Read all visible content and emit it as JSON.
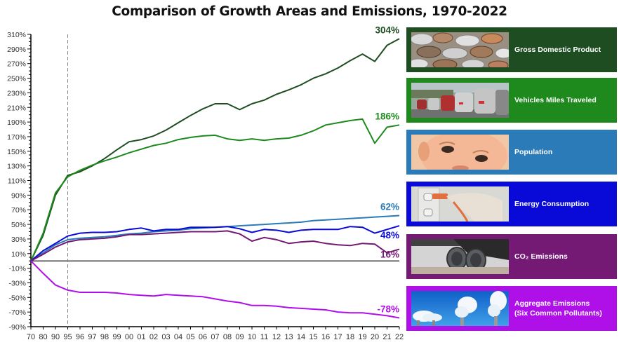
{
  "title": "Comparison of Growth Areas and Emissions, 1970-2022",
  "legend": [
    {
      "label": "Gross Domestic Product",
      "color": "#1e4d22",
      "image": "coins-photo"
    },
    {
      "label": "Vehicles Miles Traveled",
      "color": "#1e8a1e",
      "image": "traffic-photo"
    },
    {
      "label": "Population",
      "color": "#2a7bb8",
      "image": "baby-face-photo"
    },
    {
      "label": "Energy Consumption",
      "color": "#0a0ad8",
      "image": "power-plug-photo"
    },
    {
      "label": "CO₂ Emissions",
      "color": "#741a74",
      "image": "exhaust-pipe-photo"
    },
    {
      "label": "Aggregate Emissions",
      "label2": "(Six Common Pollutants)",
      "color": "#b010e8",
      "image": "smokestacks-photo"
    }
  ],
  "chart_data": {
    "type": "line",
    "title": "Comparison of Growth Areas and Emissions, 1970-2022",
    "xlabel": "",
    "ylabel": "",
    "x": [
      "70",
      "80",
      "90",
      "95",
      "96",
      "97",
      "98",
      "99",
      "00",
      "01",
      "02",
      "03",
      "04",
      "05",
      "06",
      "07",
      "08",
      "09",
      "10",
      "11",
      "12",
      "13",
      "14",
      "15",
      "16",
      "17",
      "18",
      "19",
      "20",
      "21",
      "22"
    ],
    "ylim": [
      -90,
      310
    ],
    "yticks": [
      "310%",
      "290%",
      "270%",
      "250%",
      "230%",
      "210%",
      "190%",
      "170%",
      "150%",
      "130%",
      "110%",
      "90%",
      "70%",
      "50%",
      "30%",
      "10%",
      "-10%",
      "-30%",
      "-50%",
      "-70%",
      "-90%"
    ],
    "ytick_values": [
      310,
      290,
      270,
      250,
      230,
      210,
      190,
      170,
      150,
      130,
      110,
      90,
      70,
      50,
      30,
      10,
      -10,
      -30,
      -50,
      -70,
      -90
    ],
    "reference_line": {
      "x": "95",
      "style": "dashed"
    },
    "grid": false,
    "series": [
      {
        "name": "Gross Domestic Product",
        "color": "#1e4d22",
        "end_label": "304%",
        "values": [
          0,
          35,
          90,
          117,
          122,
          130,
          140,
          152,
          163,
          166,
          171,
          179,
          189,
          199,
          208,
          215,
          215,
          207,
          215,
          220,
          228,
          234,
          241,
          250,
          256,
          264,
          274,
          283,
          273,
          295,
          304
        ]
      },
      {
        "name": "Vehicles Miles Traveled",
        "color": "#1e8a1e",
        "end_label": "186%",
        "values": [
          0,
          38,
          93,
          115,
          124,
          131,
          137,
          142,
          148,
          153,
          158,
          161,
          166,
          169,
          171,
          172,
          167,
          165,
          167,
          165,
          167,
          168,
          172,
          178,
          186,
          189,
          192,
          194,
          161,
          183,
          186
        ]
      },
      {
        "name": "Population",
        "color": "#2a7bb8",
        "end_label": "62%",
        "values": [
          0,
          11,
          22,
          29,
          31,
          32,
          33,
          35,
          37,
          38,
          40,
          41,
          42,
          44,
          45,
          46,
          47,
          48,
          49,
          50,
          51,
          52,
          53,
          55,
          56,
          57,
          58,
          59,
          60,
          61,
          62
        ]
      },
      {
        "name": "Energy Consumption",
        "color": "#0a0ad8",
        "end_label": "48%",
        "values": [
          0,
          14,
          24,
          34,
          38,
          39,
          39,
          40,
          43,
          45,
          41,
          43,
          43,
          46,
          46,
          46,
          47,
          44,
          39,
          43,
          42,
          39,
          42,
          43,
          43,
          43,
          47,
          46,
          38,
          43,
          48
        ]
      },
      {
        "name": "CO₂ Emissions",
        "color": "#741a74",
        "end_label": "16%",
        "values": [
          0,
          9,
          19,
          26,
          29,
          30,
          31,
          33,
          36,
          36,
          37,
          38,
          39,
          40,
          40,
          40,
          41,
          37,
          27,
          32,
          29,
          24,
          26,
          27,
          24,
          22,
          21,
          24,
          23,
          11,
          16
        ]
      },
      {
        "name": "Aggregate Emissions (Six Common Pollutants)",
        "color": "#b010e8",
        "end_label": "-78%",
        "values": [
          0,
          -17,
          -33,
          -40,
          -43,
          -43,
          -43,
          -44,
          -46,
          -47,
          -48,
          -46,
          -47,
          -48,
          -49,
          -52,
          -55,
          -57,
          -61,
          -61,
          -62,
          -64,
          -65,
          -66,
          -67,
          -70,
          -71,
          -71,
          -73,
          -75,
          -78
        ]
      }
    ]
  }
}
